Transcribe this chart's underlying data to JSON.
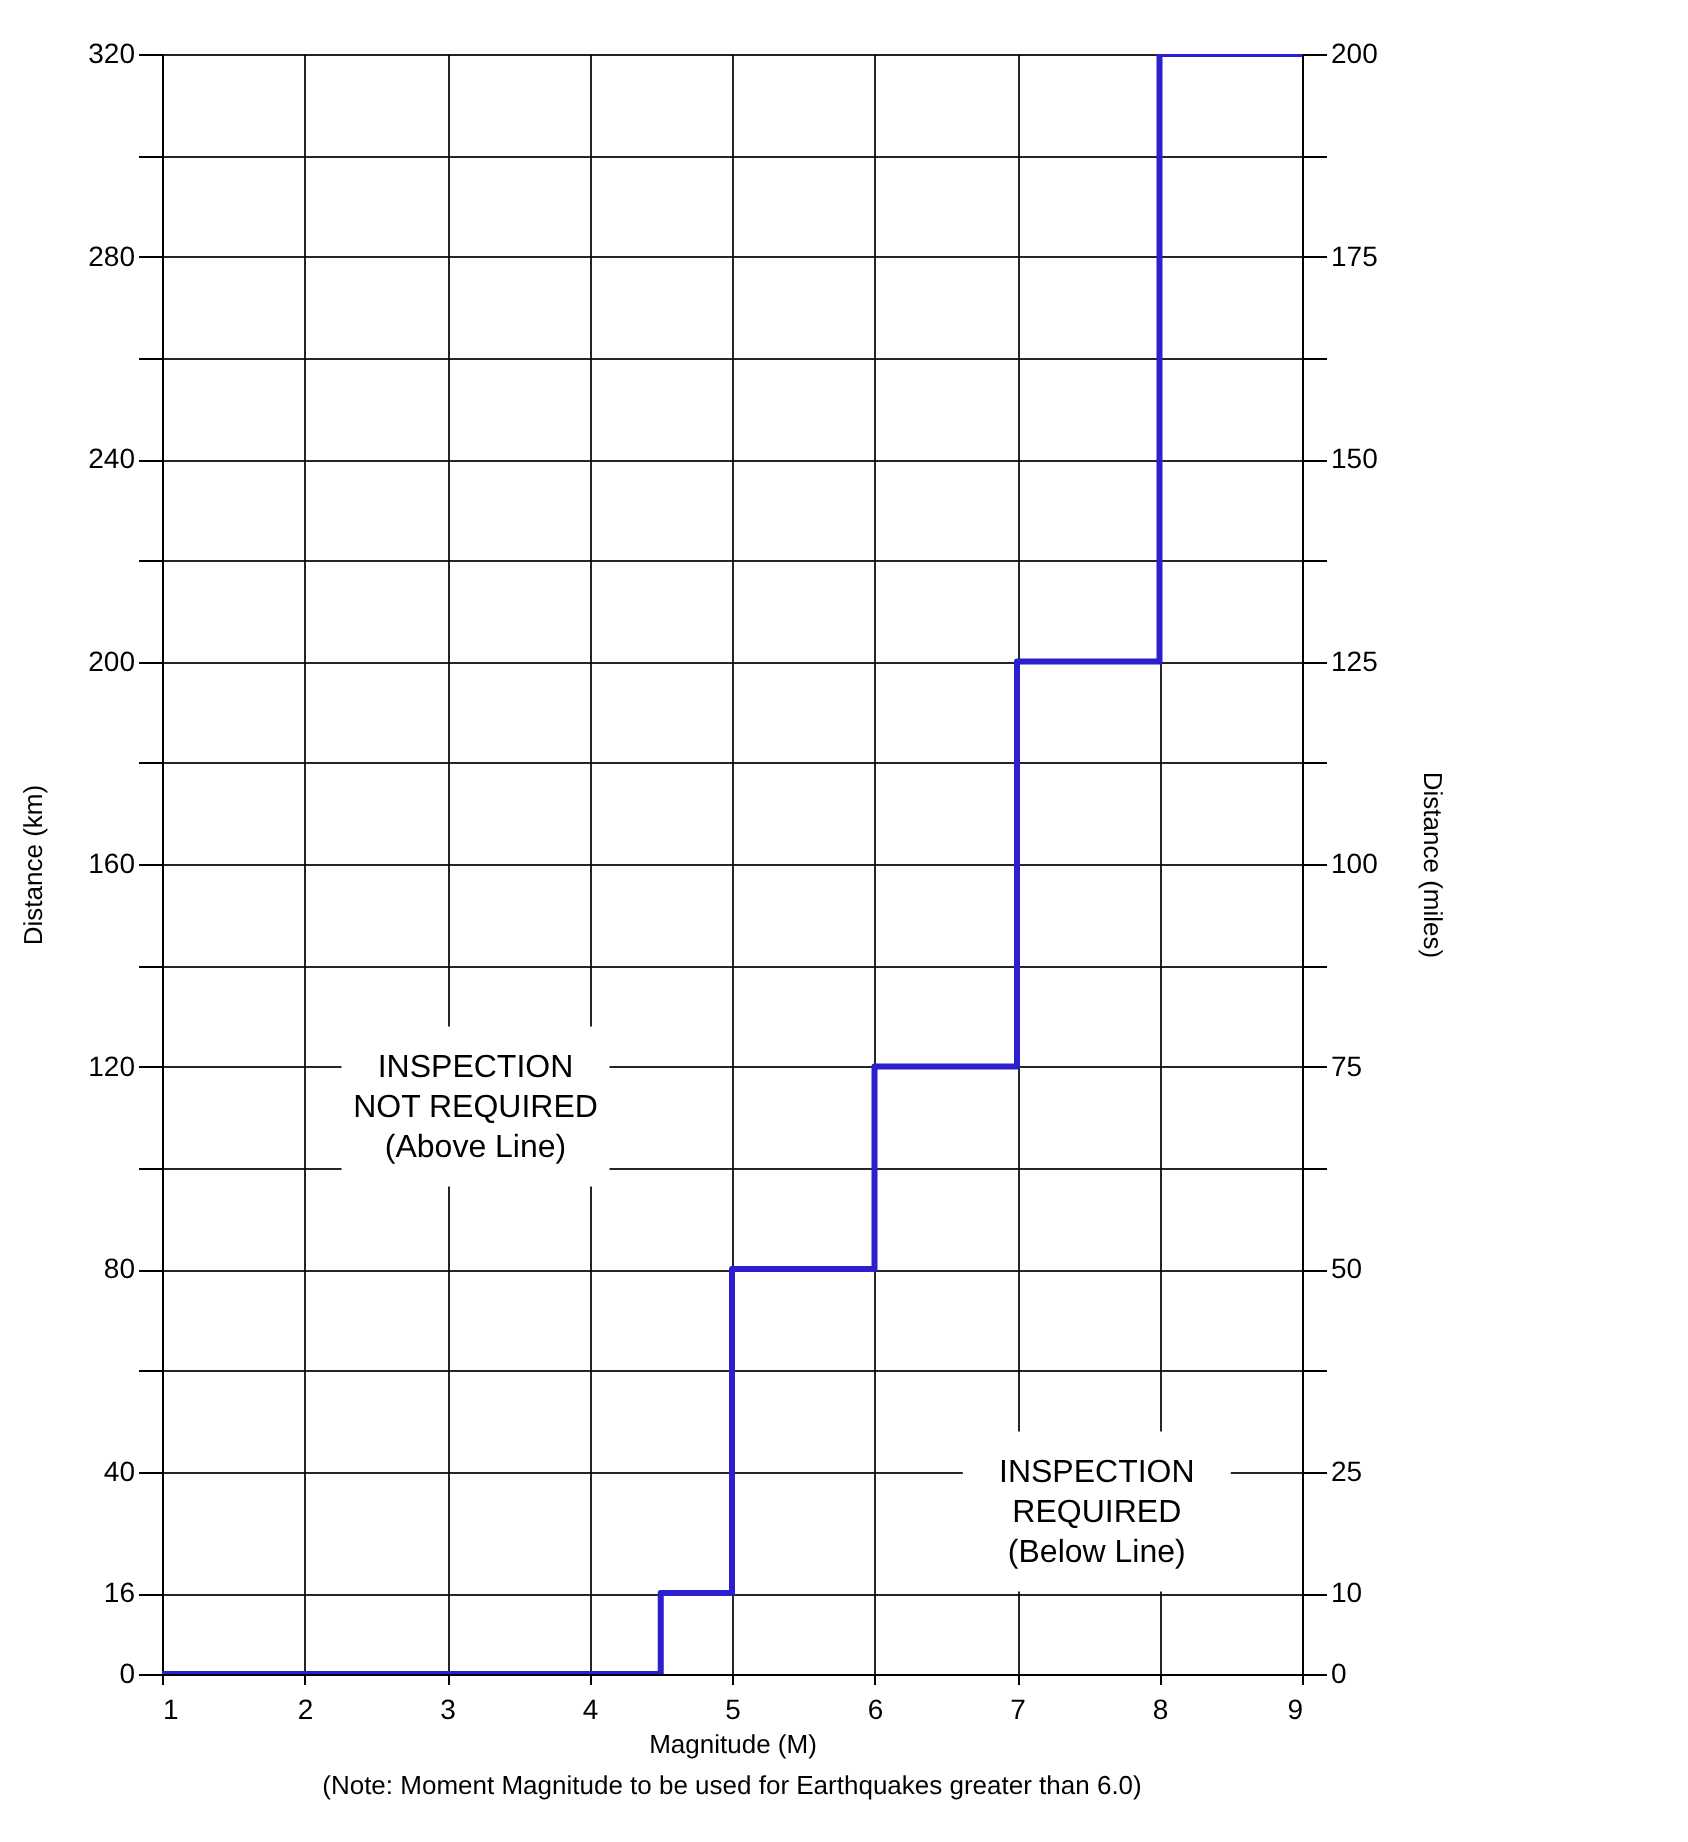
{
  "chart_data": {
    "type": "step",
    "xlabel": "Magnitude (M)",
    "ylabel": "Distance (km)",
    "y2label": "Distance (miles)",
    "x": [
      1,
      4.5,
      5,
      6,
      7,
      8,
      9
    ],
    "series": [
      {
        "color": "#2b1fd0",
        "values": [
          0,
          16,
          80,
          120,
          200,
          320,
          320
        ]
      }
    ],
    "xlim": [
      1,
      9
    ],
    "xticks": [
      1,
      2,
      3,
      4,
      5,
      6,
      7,
      8,
      9
    ],
    "ylim": [
      0,
      320
    ],
    "yticks": [
      0,
      16,
      40,
      {
        "value": 60,
        "label": null
      },
      80,
      {
        "value": 100,
        "label": null
      },
      120,
      {
        "value": 140,
        "label": null
      },
      160,
      {
        "value": 180,
        "label": null
      },
      200,
      {
        "value": 220,
        "label": null
      },
      240,
      {
        "value": 260,
        "label": null
      },
      280,
      {
        "value": 300,
        "label": null
      },
      320
    ],
    "y2lim": [
      0,
      200
    ],
    "y2ticks": [
      0,
      10,
      25,
      {
        "value": 37.5,
        "label": null
      },
      50,
      {
        "value": 62.5,
        "label": null
      },
      75,
      {
        "value": 87.5,
        "label": null
      },
      100,
      {
        "value": 112.5,
        "label": null
      },
      125,
      {
        "value": 137.5,
        "label": null
      },
      150,
      {
        "value": 162.5,
        "label": null
      },
      175,
      {
        "value": 187.5,
        "label": null
      },
      200
    ],
    "grid": true,
    "annotations": [
      "INSPECTION\nNOT REQUIRED\n(Above Line)",
      "INSPECTION\nREQUIRED\n(Below Line)",
      "(Note: Moment Magnitude to be used for Earthquakes greater than 6.0)"
    ]
  }
}
